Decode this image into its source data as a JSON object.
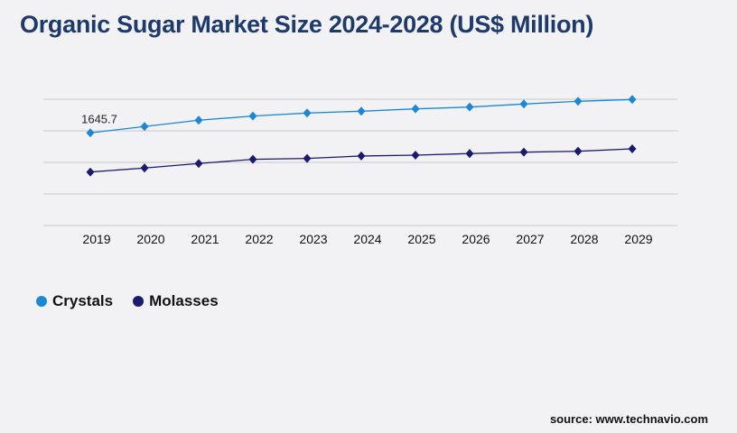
{
  "chart_data": {
    "type": "line",
    "title": "Organic Sugar Market Size 2024-2028 (US$ Million)",
    "x": [
      "2019",
      "2020",
      "2021",
      "2022",
      "2023",
      "2024",
      "2025",
      "2026",
      "2027",
      "2028",
      "2029"
    ],
    "series": [
      {
        "name": "Crystals",
        "color": "#1b87d6",
        "values": [
          1645.7,
          1758,
          1870,
          1944,
          1998,
          2030,
          2072,
          2104,
          2158,
          2206,
          2238
        ]
      },
      {
        "name": "Molasses",
        "color": "#1a1a6e",
        "values": [
          950,
          1021,
          1102,
          1175,
          1191,
          1235,
          1250,
          1278,
          1303,
          1319,
          1362
        ]
      }
    ],
    "data_labels": [
      {
        "series": "Crystals",
        "x": "2019",
        "text": "1645.7"
      }
    ],
    "ylim": [
      0,
      2243
    ],
    "grid": true,
    "legend": "bottom-left"
  },
  "source": "source: www.technavio.com"
}
